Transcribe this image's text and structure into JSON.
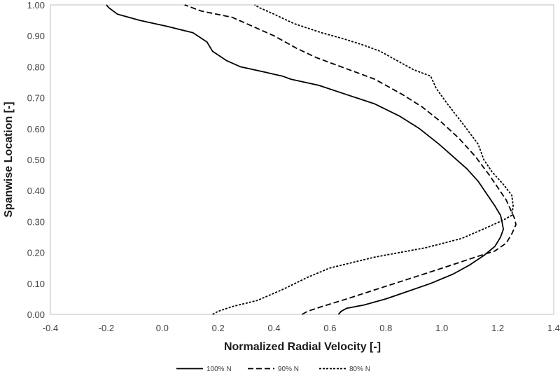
{
  "chart_data": {
    "type": "line",
    "title": "",
    "xlabel": "Normalized Radial Velocity [-]",
    "ylabel": "Spanwise Location [-]",
    "xlim": [
      -0.4,
      1.4
    ],
    "ylim": [
      0.0,
      1.0
    ],
    "xticks": [
      "-0.4",
      "-0.2",
      "0.0",
      "0.2",
      "0.4",
      "0.6",
      "0.8",
      "1.0",
      "1.2",
      "1.4"
    ],
    "yticks": [
      "0.00",
      "0.10",
      "0.20",
      "0.30",
      "0.40",
      "0.50",
      "0.60",
      "0.70",
      "0.80",
      "0.90",
      "1.00"
    ],
    "grid": false,
    "legend_position": "bottom",
    "series": [
      {
        "name": "100% N",
        "style": "solid",
        "color": "#000000",
        "points": [
          [
            0.63,
            0.0
          ],
          [
            0.64,
            0.01
          ],
          [
            0.66,
            0.02
          ],
          [
            0.72,
            0.03
          ],
          [
            0.8,
            0.05
          ],
          [
            0.88,
            0.075
          ],
          [
            0.96,
            0.1
          ],
          [
            1.04,
            0.13
          ],
          [
            1.1,
            0.16
          ],
          [
            1.15,
            0.19
          ],
          [
            1.19,
            0.22
          ],
          [
            1.21,
            0.25
          ],
          [
            1.22,
            0.275
          ],
          [
            1.215,
            0.3
          ],
          [
            1.21,
            0.32
          ],
          [
            1.19,
            0.35
          ],
          [
            1.16,
            0.39
          ],
          [
            1.13,
            0.43
          ],
          [
            1.09,
            0.47
          ],
          [
            1.04,
            0.51
          ],
          [
            0.99,
            0.55
          ],
          [
            0.92,
            0.6
          ],
          [
            0.85,
            0.64
          ],
          [
            0.76,
            0.68
          ],
          [
            0.66,
            0.71
          ],
          [
            0.56,
            0.74
          ],
          [
            0.46,
            0.76
          ],
          [
            0.43,
            0.77
          ],
          [
            0.38,
            0.78
          ],
          [
            0.28,
            0.8
          ],
          [
            0.23,
            0.82
          ],
          [
            0.18,
            0.85
          ],
          [
            0.16,
            0.88
          ],
          [
            0.11,
            0.91
          ],
          [
            0.02,
            0.93
          ],
          [
            -0.08,
            0.95
          ],
          [
            -0.16,
            0.97
          ],
          [
            -0.19,
            0.99
          ],
          [
            -0.2,
            1.0
          ]
        ]
      },
      {
        "name": "90% N",
        "style": "dashed",
        "color": "#000000",
        "points": [
          [
            0.5,
            0.0
          ],
          [
            0.52,
            0.01
          ],
          [
            0.57,
            0.025
          ],
          [
            0.66,
            0.05
          ],
          [
            0.78,
            0.085
          ],
          [
            0.9,
            0.12
          ],
          [
            1.02,
            0.155
          ],
          [
            1.12,
            0.185
          ],
          [
            1.19,
            0.205
          ],
          [
            1.23,
            0.23
          ],
          [
            1.25,
            0.26
          ],
          [
            1.265,
            0.29
          ],
          [
            1.26,
            0.31
          ],
          [
            1.245,
            0.34
          ],
          [
            1.23,
            0.37
          ],
          [
            1.2,
            0.41
          ],
          [
            1.17,
            0.45
          ],
          [
            1.12,
            0.51
          ],
          [
            1.06,
            0.57
          ],
          [
            1.0,
            0.62
          ],
          [
            0.93,
            0.67
          ],
          [
            0.86,
            0.71
          ],
          [
            0.8,
            0.74
          ],
          [
            0.76,
            0.76
          ],
          [
            0.7,
            0.78
          ],
          [
            0.64,
            0.8
          ],
          [
            0.55,
            0.83
          ],
          [
            0.48,
            0.86
          ],
          [
            0.4,
            0.9
          ],
          [
            0.3,
            0.94
          ],
          [
            0.25,
            0.96
          ],
          [
            0.14,
            0.98
          ],
          [
            0.08,
            1.0
          ]
        ]
      },
      {
        "name": "80% N",
        "style": "dotted",
        "color": "#000000",
        "points": [
          [
            0.18,
            0.0
          ],
          [
            0.2,
            0.01
          ],
          [
            0.25,
            0.025
          ],
          [
            0.34,
            0.045
          ],
          [
            0.43,
            0.08
          ],
          [
            0.52,
            0.12
          ],
          [
            0.6,
            0.15
          ],
          [
            0.76,
            0.185
          ],
          [
            0.94,
            0.215
          ],
          [
            1.07,
            0.245
          ],
          [
            1.16,
            0.28
          ],
          [
            1.22,
            0.305
          ],
          [
            1.25,
            0.32
          ],
          [
            1.255,
            0.35
          ],
          [
            1.25,
            0.385
          ],
          [
            1.22,
            0.42
          ],
          [
            1.18,
            0.46
          ],
          [
            1.15,
            0.5
          ],
          [
            1.13,
            0.55
          ],
          [
            1.08,
            0.61
          ],
          [
            1.02,
            0.68
          ],
          [
            0.98,
            0.73
          ],
          [
            0.96,
            0.77
          ],
          [
            0.9,
            0.79
          ],
          [
            0.84,
            0.82
          ],
          [
            0.78,
            0.85
          ],
          [
            0.72,
            0.87
          ],
          [
            0.65,
            0.89
          ],
          [
            0.57,
            0.91
          ],
          [
            0.47,
            0.94
          ],
          [
            0.4,
            0.97
          ],
          [
            0.35,
            0.99
          ],
          [
            0.33,
            1.0
          ]
        ]
      }
    ]
  }
}
